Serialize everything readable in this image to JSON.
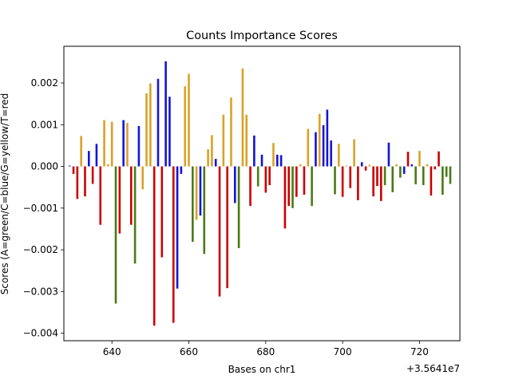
{
  "chart_data": {
    "type": "bar",
    "title": "Counts Importance Scores",
    "xlabel": "Bases on chr1",
    "ylabel": "Scores (A=green/C=blue/G=yellow/T=red",
    "x_offset_label": "+3.5641e7",
    "xlim": [
      627.5,
      730.5
    ],
    "ylim": [
      -0.00418,
      0.00288
    ],
    "x_ticks": [
      640,
      660,
      680,
      700,
      720
    ],
    "y_ticks": [
      {
        "value": 0.002,
        "label": "0.002"
      },
      {
        "value": 0.001,
        "label": "0.001"
      },
      {
        "value": 0.0,
        "label": "0.000"
      },
      {
        "value": -0.001,
        "label": "−0.001"
      },
      {
        "value": -0.002,
        "label": "−0.002"
      },
      {
        "value": -0.003,
        "label": "−0.003"
      },
      {
        "value": -0.004,
        "label": "−0.004"
      }
    ],
    "grid": false,
    "colors": {
      "A": "#4a7a17",
      "C": "#1515d6",
      "G": "#daa128",
      "T": "#cc0000"
    },
    "bars": [
      {
        "x": 629,
        "base": "C",
        "value": 2e-05
      },
      {
        "x": 630,
        "base": "T",
        "value": -0.00018
      },
      {
        "x": 631,
        "base": "T",
        "value": -0.00078
      },
      {
        "x": 632,
        "base": "G",
        "value": 0.00073
      },
      {
        "x": 633,
        "base": "T",
        "value": -0.00072
      },
      {
        "x": 634,
        "base": "C",
        "value": 0.00037
      },
      {
        "x": 635,
        "base": "T",
        "value": -0.00042
      },
      {
        "x": 636,
        "base": "C",
        "value": 0.00054
      },
      {
        "x": 637,
        "base": "T",
        "value": -0.0014
      },
      {
        "x": 638,
        "base": "G",
        "value": 0.00111
      },
      {
        "x": 639,
        "base": "G",
        "value": 5e-05
      },
      {
        "x": 640,
        "base": "G",
        "value": 0.00107
      },
      {
        "x": 641,
        "base": "A",
        "value": -0.00329
      },
      {
        "x": 642,
        "base": "T",
        "value": -0.00161
      },
      {
        "x": 643,
        "base": "C",
        "value": 0.00111
      },
      {
        "x": 644,
        "base": "G",
        "value": 0.00104
      },
      {
        "x": 645,
        "base": "T",
        "value": -0.0014
      },
      {
        "x": 646,
        "base": "A",
        "value": -0.00233
      },
      {
        "x": 647,
        "base": "C",
        "value": 0.00097
      },
      {
        "x": 648,
        "base": "G",
        "value": -0.00055
      },
      {
        "x": 649,
        "base": "G",
        "value": 0.00175
      },
      {
        "x": 650,
        "base": "G",
        "value": 0.00199
      },
      {
        "x": 651,
        "base": "T",
        "value": -0.00382
      },
      {
        "x": 652,
        "base": "C",
        "value": 0.0021
      },
      {
        "x": 653,
        "base": "T",
        "value": -0.00218
      },
      {
        "x": 654,
        "base": "C",
        "value": 0.00252
      },
      {
        "x": 655,
        "base": "C",
        "value": 0.00167
      },
      {
        "x": 656,
        "base": "T",
        "value": -0.00375
      },
      {
        "x": 657,
        "base": "C",
        "value": -0.00293
      },
      {
        "x": 658,
        "base": "C",
        "value": -0.00018
      },
      {
        "x": 659,
        "base": "G",
        "value": 0.00192
      },
      {
        "x": 660,
        "base": "G",
        "value": 0.00222
      },
      {
        "x": 661,
        "base": "A",
        "value": -0.00181
      },
      {
        "x": 662,
        "base": "G",
        "value": -0.00128
      },
      {
        "x": 663,
        "base": "C",
        "value": -0.00118
      },
      {
        "x": 664,
        "base": "A",
        "value": -0.0021
      },
      {
        "x": 665,
        "base": "G",
        "value": 0.00041
      },
      {
        "x": 666,
        "base": "G",
        "value": 0.00075
      },
      {
        "x": 667,
        "base": "C",
        "value": 0.00018
      },
      {
        "x": 668,
        "base": "T",
        "value": -0.00312
      },
      {
        "x": 669,
        "base": "G",
        "value": 0.00124
      },
      {
        "x": 670,
        "base": "T",
        "value": -0.00292
      },
      {
        "x": 671,
        "base": "G",
        "value": 0.00165
      },
      {
        "x": 672,
        "base": "C",
        "value": -0.00088
      },
      {
        "x": 673,
        "base": "A",
        "value": -0.00196
      },
      {
        "x": 674,
        "base": "G",
        "value": 0.00235
      },
      {
        "x": 675,
        "base": "G",
        "value": 0.00124
      },
      {
        "x": 676,
        "base": "T",
        "value": -0.00095
      },
      {
        "x": 677,
        "base": "C",
        "value": 0.00074
      },
      {
        "x": 678,
        "base": "A",
        "value": -0.00048
      },
      {
        "x": 679,
        "base": "C",
        "value": 0.00028
      },
      {
        "x": 680,
        "base": "T",
        "value": -0.00063
      },
      {
        "x": 681,
        "base": "T",
        "value": -0.00045
      },
      {
        "x": 682,
        "base": "G",
        "value": 0.00056
      },
      {
        "x": 683,
        "base": "C",
        "value": 0.00028
      },
      {
        "x": 684,
        "base": "C",
        "value": 0.00027
      },
      {
        "x": 685,
        "base": "T",
        "value": -0.00149
      },
      {
        "x": 686,
        "base": "T",
        "value": -0.00095
      },
      {
        "x": 687,
        "base": "A",
        "value": -0.001
      },
      {
        "x": 688,
        "base": "T",
        "value": -0.00073
      },
      {
        "x": 689,
        "base": "G",
        "value": 5e-05
      },
      {
        "x": 690,
        "base": "T",
        "value": -0.00068
      },
      {
        "x": 691,
        "base": "G",
        "value": 0.0009
      },
      {
        "x": 692,
        "base": "A",
        "value": -0.00095
      },
      {
        "x": 693,
        "base": "C",
        "value": 0.00082
      },
      {
        "x": 694,
        "base": "G",
        "value": 0.00126
      },
      {
        "x": 695,
        "base": "C",
        "value": 0.00099
      },
      {
        "x": 696,
        "base": "C",
        "value": 0.00136
      },
      {
        "x": 697,
        "base": "C",
        "value": 0.00062
      },
      {
        "x": 698,
        "base": "A",
        "value": -0.00067
      },
      {
        "x": 699,
        "base": "G",
        "value": 0.00054
      },
      {
        "x": 700,
        "base": "T",
        "value": -0.00073
      },
      {
        "x": 701,
        "base": "G",
        "value": 2e-05
      },
      {
        "x": 702,
        "base": "T",
        "value": -0.00052
      },
      {
        "x": 703,
        "base": "G",
        "value": 0.00065
      },
      {
        "x": 704,
        "base": "T",
        "value": -0.00081
      },
      {
        "x": 705,
        "base": "C",
        "value": 0.0001
      },
      {
        "x": 706,
        "base": "T",
        "value": -0.0001
      },
      {
        "x": 707,
        "base": "G",
        "value": 4e-05
      },
      {
        "x": 708,
        "base": "T",
        "value": -0.00072
      },
      {
        "x": 709,
        "base": "T",
        "value": -0.00047
      },
      {
        "x": 710,
        "base": "T",
        "value": -0.00083
      },
      {
        "x": 711,
        "base": "A",
        "value": -0.00045
      },
      {
        "x": 712,
        "base": "C",
        "value": 0.00057
      },
      {
        "x": 713,
        "base": "A",
        "value": -0.00062
      },
      {
        "x": 714,
        "base": "G",
        "value": 5e-05
      },
      {
        "x": 715,
        "base": "A",
        "value": -0.00027
      },
      {
        "x": 716,
        "base": "C",
        "value": -0.00018
      },
      {
        "x": 717,
        "base": "T",
        "value": 0.00035
      },
      {
        "x": 718,
        "base": "C",
        "value": 5e-05
      },
      {
        "x": 719,
        "base": "A",
        "value": -0.00043
      },
      {
        "x": 720,
        "base": "G",
        "value": 0.00037
      },
      {
        "x": 721,
        "base": "A",
        "value": -0.00045
      },
      {
        "x": 722,
        "base": "G",
        "value": 5e-05
      },
      {
        "x": 723,
        "base": "T",
        "value": -0.0007
      },
      {
        "x": 724,
        "base": "T",
        "value": -7e-05
      },
      {
        "x": 725,
        "base": "T",
        "value": 0.00036
      },
      {
        "x": 726,
        "base": "A",
        "value": -0.00068
      },
      {
        "x": 727,
        "base": "A",
        "value": -0.00025
      },
      {
        "x": 728,
        "base": "A",
        "value": -0.00042
      }
    ]
  }
}
